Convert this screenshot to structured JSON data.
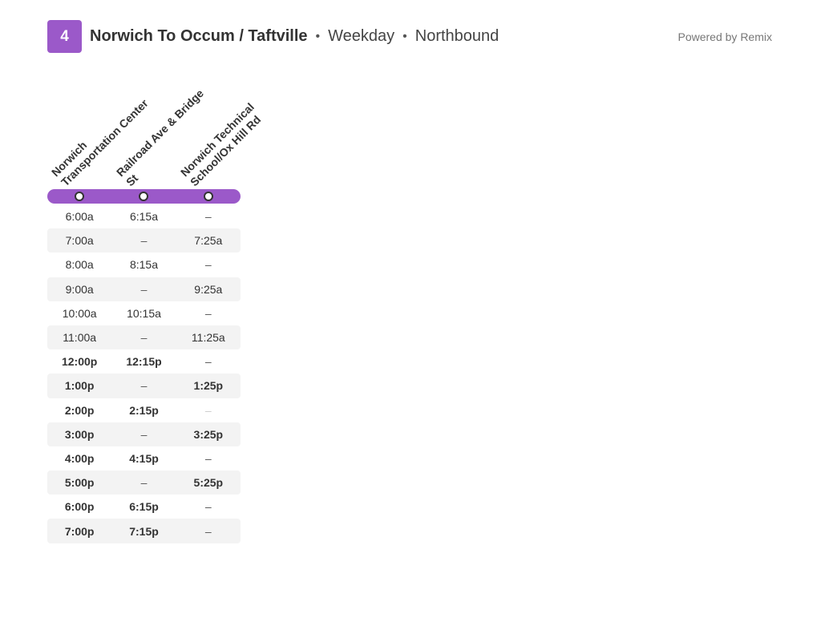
{
  "header": {
    "route_number": "4",
    "route_name": "Norwich To Occum / Taftville",
    "separator": "•",
    "day_type": "Weekday",
    "direction": "Northbound",
    "powered_by": "Powered by Remix"
  },
  "colors": {
    "route": "#9b59c9",
    "alt_row": "#f3f3f3",
    "text": "#333333"
  },
  "stops": [
    {
      "line1": "Norwich",
      "line2": "Transportation Center"
    },
    {
      "line1": "Railroad Ave & Bridge",
      "line2": "St"
    },
    {
      "line1": "Norwich Technical",
      "line2": "School/Ox Hill Rd"
    }
  ],
  "schedule": {
    "rows": [
      {
        "times": [
          "6:00a",
          "6:15a",
          "–"
        ]
      },
      {
        "times": [
          "7:00a",
          "–",
          "7:25a"
        ]
      },
      {
        "times": [
          "8:00a",
          "8:15a",
          "–"
        ]
      },
      {
        "times": [
          "9:00a",
          "–",
          "9:25a"
        ]
      },
      {
        "times": [
          "10:00a",
          "10:15a",
          "–"
        ]
      },
      {
        "times": [
          "11:00a",
          "–",
          "11:25a"
        ]
      },
      {
        "times": [
          "12:00p",
          "12:15p",
          "–"
        ]
      },
      {
        "times": [
          "1:00p",
          "–",
          "1:25p"
        ]
      },
      {
        "times": [
          "2:00p",
          "2:15p",
          "–"
        ]
      },
      {
        "times": [
          "3:00p",
          "–",
          "3:25p"
        ]
      },
      {
        "times": [
          "4:00p",
          "4:15p",
          "–"
        ]
      },
      {
        "times": [
          "5:00p",
          "–",
          "5:25p"
        ]
      },
      {
        "times": [
          "6:00p",
          "6:15p",
          "–"
        ]
      },
      {
        "times": [
          "7:00p",
          "7:15p",
          "–"
        ]
      }
    ]
  }
}
